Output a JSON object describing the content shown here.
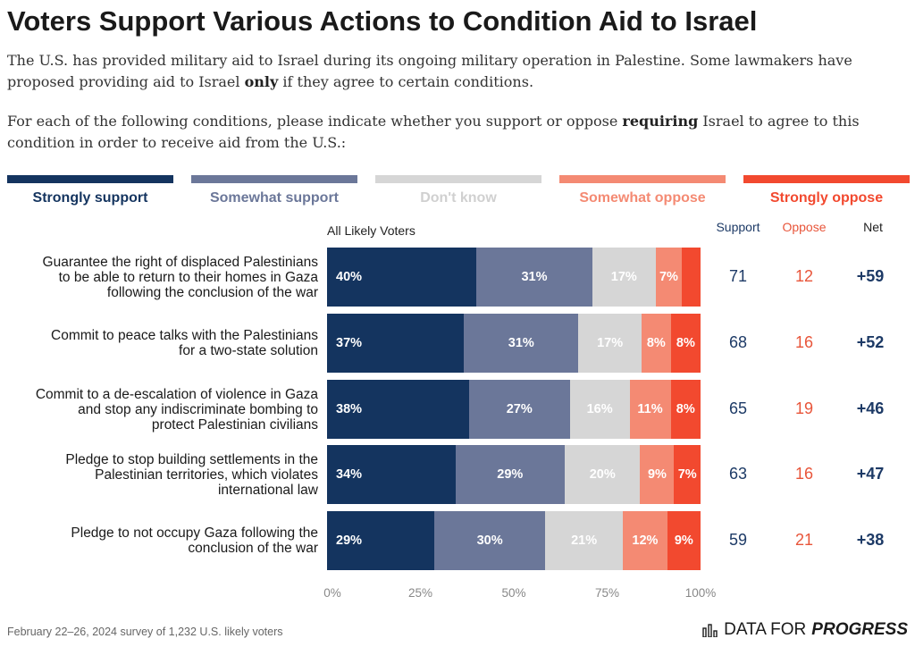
{
  "title": "Voters Support Various Actions to Condition Aid to Israel",
  "intro": {
    "p1_a": "The U.S. has provided military aid to Israel during its ongoing military operation in Palestine. Some lawmakers have proposed providing aid to Israel ",
    "p1_bold": "only",
    "p1_b": " if they agree to certain conditions.",
    "p2_a": "For each of the following conditions, please indicate whether you support or oppose ",
    "p2_bold": "requiring",
    "p2_b": " Israel to agree to this condition in order to receive aid from the U.S.:"
  },
  "legend": [
    {
      "label": "Strongly support",
      "color": "#14345f",
      "text_color": "#14345f"
    },
    {
      "label": "Somewhat support",
      "color": "#6b7799",
      "text_color": "#6b7799"
    },
    {
      "label": "Don't know",
      "color": "#d6d6d6",
      "text_color": "#d0d0d0"
    },
    {
      "label": "Somewhat oppose",
      "color": "#f48a73",
      "text_color": "#f48a73"
    },
    {
      "label": "Strongly oppose",
      "color": "#f2492f",
      "text_color": "#f2492f"
    }
  ],
  "column_headers": {
    "group": "All Likely Voters",
    "support": "Support",
    "oppose": "Oppose",
    "net": "Net"
  },
  "colors": {
    "support_text": "#1d3a66",
    "oppose_text": "#e8553a"
  },
  "chart_data": {
    "type": "bar",
    "orientation": "horizontal-stacked-100",
    "xlim": [
      0,
      100
    ],
    "xticks": [
      "0%",
      "25%",
      "50%",
      "75%",
      "100%"
    ],
    "series_names": [
      "Strongly support",
      "Somewhat support",
      "Don't know",
      "Somewhat oppose",
      "Strongly oppose"
    ],
    "rows": [
      {
        "label_lines": [
          "Guarantee the right of displaced Palestinians",
          "to be able to return to their homes in Gaza",
          "following the conclusion of the war"
        ],
        "values": [
          40,
          31,
          17,
          7,
          5
        ],
        "labels": [
          "40%",
          "31%",
          "17%",
          "7%",
          ""
        ],
        "support": "71",
        "oppose": "12",
        "net": "+59"
      },
      {
        "label_lines": [
          "Commit to peace talks with the Palestinians",
          "for a two-state solution"
        ],
        "values": [
          37,
          31,
          17,
          8,
          8
        ],
        "labels": [
          "37%",
          "31%",
          "17%",
          "8%",
          "8%"
        ],
        "support": "68",
        "oppose": "16",
        "net": "+52"
      },
      {
        "label_lines": [
          "Commit to a de-escalation of violence in Gaza",
          "and stop any indiscriminate bombing to",
          "protect Palestinian civilians"
        ],
        "values": [
          38,
          27,
          16,
          11,
          8
        ],
        "labels": [
          "38%",
          "27%",
          "16%",
          "11%",
          "8%"
        ],
        "support": "65",
        "oppose": "19",
        "net": "+46"
      },
      {
        "label_lines": [
          "Pledge to stop building settlements in the",
          "Palestinian territories, which violates",
          "international law"
        ],
        "values": [
          34,
          29,
          20,
          9,
          7
        ],
        "labels": [
          "34%",
          "29%",
          "20%",
          "9%",
          "7%"
        ],
        "support": "63",
        "oppose": "16",
        "net": "+47"
      },
      {
        "label_lines": [
          "Pledge to not occupy Gaza following the",
          "conclusion of the war"
        ],
        "values": [
          29,
          30,
          21,
          12,
          9
        ],
        "labels": [
          "29%",
          "30%",
          "21%",
          "12%",
          "9%"
        ],
        "support": "59",
        "oppose": "21",
        "net": "+38"
      }
    ]
  },
  "footer": "February 22–26, 2024 survey of 1,232 U.S. likely voters",
  "brand": {
    "part1": "DATA FOR",
    "part2": "PROGRESS",
    "icon": "bar-chart-logo-icon"
  }
}
